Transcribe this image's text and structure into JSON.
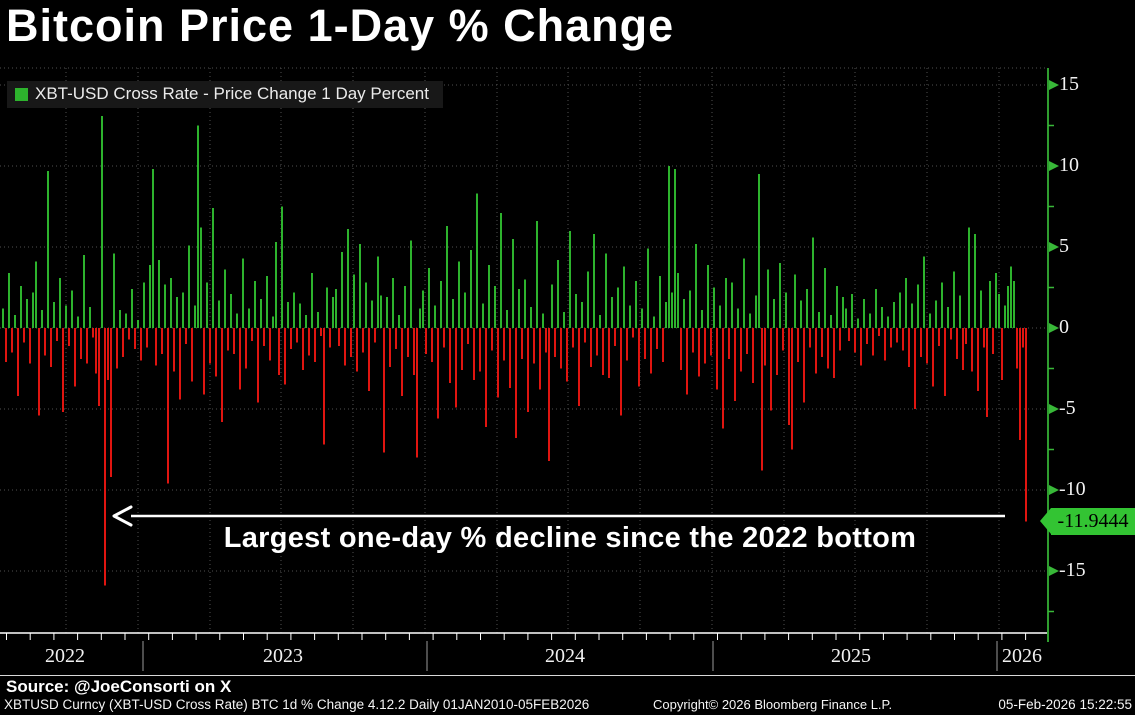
{
  "header": {
    "title": "Bitcoin Price 1-Day % Change"
  },
  "legend": {
    "label": "XBT-USD Cross Rate - Price Change 1 Day Percent"
  },
  "annotation": {
    "text": "Largest one-day % decline since the 2022 bottom"
  },
  "last_price_tag": {
    "value": "-11.9444"
  },
  "y_axis": {
    "labels": [
      "15",
      "10",
      "5",
      "0",
      "-5",
      "-10",
      "-15"
    ]
  },
  "x_axis": {
    "years": [
      "2022",
      "2023",
      "2024",
      "2025",
      "2026"
    ]
  },
  "footer": {
    "source": "Source: @JoeConsorti on X",
    "descriptor": "XBTUSD Curncy (XBT-USD Cross Rate) BTC 1d % Change 4.12.2 Daily 01JAN2010-05FEB2026",
    "copyright": "Copyright© 2026 Bloomberg Finance L.P.",
    "timestamp": "05-Feb-2026 15:22:55"
  },
  "colors": {
    "background": "#000000",
    "bar_positive": "#2db32d",
    "bar_negative": "#e01510",
    "axis_green": "#2f9e2f",
    "axis_tick": "#38b838",
    "tag_green": "#33c433",
    "grid": "#4f4f4f",
    "text_primary": "#ffffff"
  },
  "chart_data": {
    "type": "bar",
    "title": "Bitcoin Price 1-Day % Change",
    "series_name": "XBT-USD Cross Rate - Price Change 1 Day Percent",
    "unit": "%",
    "x_visible_range": [
      "mid-2022",
      "05-Feb-2026"
    ],
    "x_tick_years": [
      "2022",
      "2023",
      "2024",
      "2025",
      "2026"
    ],
    "y_ticks": [
      15,
      10,
      5,
      0,
      -5,
      -10,
      -15
    ],
    "ylim": [
      -19,
      16
    ],
    "grid": "dotted",
    "legend_position": "top-left",
    "last_value": -11.9444,
    "key_points": [
      {
        "label": "largest one-day decline of window (2022 bottom)",
        "value": -15.9
      },
      {
        "label": "largest one-day gain of window (2022)",
        "value": 13.1
      },
      {
        "label": "final bar 05-Feb-2026, labeled on axis",
        "value": -11.9444
      }
    ],
    "values": [
      1.2,
      -2.1,
      3.4,
      -1.5,
      0.8,
      -4.2,
      2.6,
      -0.9,
      1.8,
      -2.2,
      2.2,
      4.1,
      -5.4,
      1.1,
      -1.7,
      9.7,
      -2.4,
      1.6,
      -0.8,
      3.1,
      -5.2,
      1.4,
      -1.1,
      2.3,
      -3.6,
      0.7,
      -1.9,
      4.5,
      -2.2,
      1.3,
      -0.6,
      -2.8,
      -4.8,
      13.1,
      -15.9,
      -3.2,
      -9.2,
      4.6,
      -2.5,
      1.1,
      -1.8,
      0.9,
      -0.7,
      2.4,
      -1.3,
      0.5,
      -2.0,
      2.8,
      -1.2,
      3.9,
      9.8,
      -2.3,
      4.2,
      -1.6,
      2.7,
      -9.6,
      3.1,
      -2.7,
      1.9,
      -4.4,
      2.2,
      -1.0,
      5.1,
      -3.3,
      1.4,
      12.5,
      6.2,
      -4.1,
      2.8,
      -2.2,
      7.4,
      -3.0,
      1.7,
      -5.8,
      3.6,
      -1.4,
      2.1,
      -1.6,
      0.9,
      -3.8,
      4.3,
      -2.5,
      1.2,
      -0.8,
      2.9,
      -4.6,
      1.8,
      -1.1,
      3.2,
      -2.0,
      0.7,
      5.3,
      -2.9,
      7.5,
      -3.5,
      1.6,
      -1.3,
      2.2,
      -0.9,
      1.5,
      -2.6,
      0.8,
      -1.7,
      3.4,
      -2.1,
      1.0,
      -0.5,
      -7.2,
      2.5,
      -1.2,
      1.9,
      2.4,
      -1.1,
      4.7,
      -2.3,
      6.1,
      -1.8,
      3.3,
      -2.7,
      5.2,
      -1.5,
      2.8,
      -3.9,
      1.7,
      -0.9,
      4.4,
      2.0,
      -7.7,
      1.9,
      -2.4,
      3.1,
      -1.3,
      0.8,
      -4.2,
      2.6,
      -1.8,
      5.4,
      -2.9,
      -8.0,
      1.2,
      2.3,
      -1.6,
      3.7,
      -2.1,
      1.4,
      -5.6,
      2.9,
      -1.2,
      6.3,
      -3.4,
      1.8,
      -4.9,
      4.1,
      -2.6,
      2.2,
      -1.0,
      4.8,
      -3.2,
      8.3,
      -2.7,
      1.5,
      -6.1,
      3.9,
      -1.4,
      2.6,
      -4.3,
      7.1,
      -2.0,
      1.1,
      -3.7,
      5.5,
      -6.8,
      2.4,
      -1.9,
      3.0,
      -5.2,
      1.3,
      -2.2,
      6.6,
      -3.8,
      0.9,
      -1.5,
      -8.2,
      2.7,
      -1.8,
      4.2,
      -2.5,
      1.0,
      -3.3,
      6.0,
      -1.2,
      2.1,
      -4.8,
      1.6,
      -0.9,
      3.5,
      -2.4,
      5.8,
      -1.7,
      0.8,
      -2.9,
      4.6,
      -3.1,
      1.9,
      -1.1,
      2.5,
      -5.4,
      3.8,
      -2.0,
      1.4,
      -0.6,
      2.9,
      -3.6,
      1.2,
      -1.9,
      4.9,
      -2.8,
      0.7,
      -1.3,
      3.2,
      -2.1,
      1.6,
      10.0,
      2.2,
      9.8,
      3.4,
      -2.6,
      1.8,
      -4.1,
      2.3,
      -1.5,
      5.2,
      -3.0,
      1.1,
      -2.2,
      3.9,
      -1.7,
      2.5,
      -3.8,
      1.4,
      -6.2,
      3.1,
      -1.9,
      2.8,
      -4.5,
      1.2,
      -2.7,
      4.3,
      -1.6,
      0.9,
      -3.4,
      2.0,
      9.5,
      -8.8,
      -2.3,
      3.6,
      -5.1,
      1.8,
      -2.9,
      4.0,
      -1.4,
      2.2,
      -6.0,
      -7.5,
      3.3,
      -2.1,
      1.7,
      -4.6,
      2.4,
      -1.2,
      5.6,
      -2.8,
      1.0,
      -1.8,
      3.7,
      -2.5,
      0.8,
      -3.1,
      2.6,
      -1.4,
      1.9,
      1.2,
      -0.8,
      2.1,
      -1.5,
      0.6,
      -2.3,
      1.8,
      -1.0,
      0.9,
      -1.7,
      2.4,
      -0.5,
      1.3,
      -2.0,
      0.7,
      -1.2,
      1.6,
      -0.9,
      2.2,
      -1.4,
      3.1,
      -2.4,
      1.5,
      -5.0,
      2.7,
      -1.8,
      4.4,
      -2.2,
      0.9,
      -3.6,
      1.7,
      -1.1,
      2.8,
      -4.2,
      1.3,
      -0.7,
      3.5,
      -1.9,
      2.0,
      -2.6,
      -1.0,
      6.2,
      -2.7,
      5.8,
      -3.9,
      2.3,
      -1.2,
      -5.5,
      2.9,
      -1.6,
      3.4,
      2.1,
      -3.2,
      1.4,
      2.6,
      3.8,
      2.9,
      -2.5,
      -6.9,
      -1.2,
      -11.9444
    ]
  }
}
